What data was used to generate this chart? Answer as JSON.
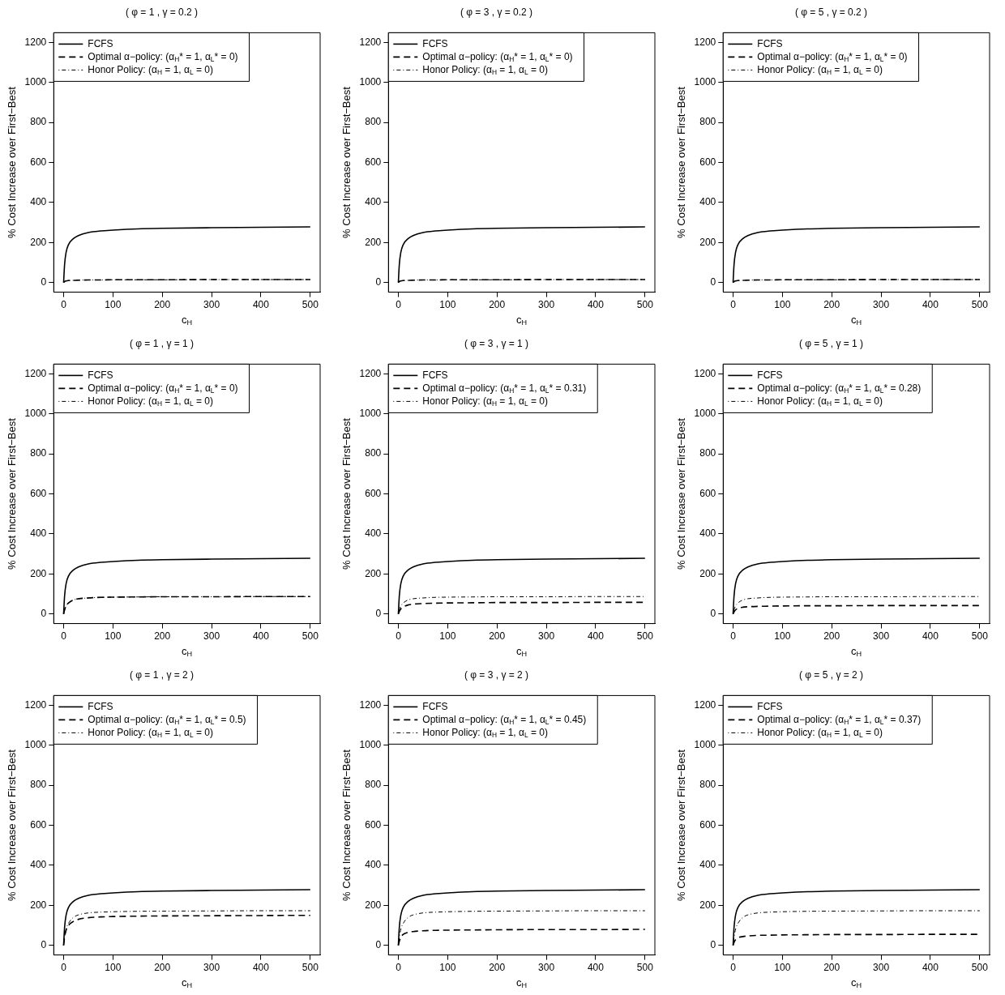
{
  "chart_data": [
    {
      "type": "line",
      "title": "( φ = 1 , γ = 0.2 )",
      "xlabel": "c$_{H}$",
      "ylabel": "% Cost Increase over First−Best",
      "xlim": [
        -20,
        520
      ],
      "ylim": [
        -48,
        1248
      ],
      "xticks": [
        0,
        100,
        200,
        300,
        400,
        500
      ],
      "yticks": [
        0,
        200,
        400,
        600,
        800,
        1000,
        1200
      ],
      "legend": "top left",
      "x": [
        0,
        2,
        5,
        10,
        20,
        30,
        50,
        75,
        100,
        150,
        200,
        300,
        400,
        500
      ],
      "series": [
        {
          "name": "FCFS",
          "color": "#000000",
          "line_style": "solid",
          "values": [
            0,
            90,
            150,
            190,
            220,
            235,
            250,
            258,
            262,
            268,
            271,
            274,
            276,
            278
          ]
        },
        {
          "name": "Optimal α−policy: (α$_{H}$* = 1, α$_{L}$* = 0)",
          "color": "#000000",
          "line_style": "dashed",
          "values": [
            0,
            5,
            8,
            10,
            11,
            12,
            13,
            13,
            14,
            14,
            14,
            15,
            15,
            15
          ]
        },
        {
          "name": "Honor Policy: (α$_{H}$ = 1, α$_{L}$ = 0)",
          "color": "#000000",
          "line_style": "dotted",
          "values": [
            0,
            5,
            8,
            10,
            11,
            12,
            13,
            13,
            14,
            14,
            14,
            15,
            15,
            15
          ]
        }
      ]
    },
    {
      "type": "line",
      "title": "( φ = 3 , γ = 0.2 )",
      "xlabel": "c$_{H}$",
      "ylabel": "% Cost Increase over First−Best",
      "xlim": [
        -20,
        520
      ],
      "ylim": [
        -48,
        1248
      ],
      "xticks": [
        0,
        100,
        200,
        300,
        400,
        500
      ],
      "yticks": [
        0,
        200,
        400,
        600,
        800,
        1000,
        1200
      ],
      "legend": "top left",
      "x": [
        0,
        2,
        5,
        10,
        20,
        30,
        50,
        75,
        100,
        150,
        200,
        300,
        400,
        500
      ],
      "series": [
        {
          "name": "FCFS",
          "color": "#000000",
          "line_style": "solid",
          "values": [
            0,
            90,
            150,
            190,
            220,
            235,
            250,
            258,
            262,
            268,
            271,
            274,
            276,
            278
          ]
        },
        {
          "name": "Optimal α−policy: (α$_{H}$* = 1, α$_{L}$* = 0)",
          "color": "#000000",
          "line_style": "dashed",
          "values": [
            0,
            5,
            8,
            10,
            11,
            12,
            13,
            13,
            14,
            14,
            14,
            15,
            15,
            15
          ]
        },
        {
          "name": "Honor Policy: (α$_{H}$ = 1, α$_{L}$ = 0)",
          "color": "#000000",
          "line_style": "dotted",
          "values": [
            0,
            5,
            8,
            10,
            11,
            12,
            13,
            13,
            14,
            14,
            14,
            15,
            15,
            15
          ]
        }
      ]
    },
    {
      "type": "line",
      "title": "( φ = 5 , γ = 0.2 )",
      "xlabel": "c$_{H}$",
      "ylabel": "% Cost Increase over First−Best",
      "xlim": [
        -20,
        520
      ],
      "ylim": [
        -48,
        1248
      ],
      "xticks": [
        0,
        100,
        200,
        300,
        400,
        500
      ],
      "yticks": [
        0,
        200,
        400,
        600,
        800,
        1000,
        1200
      ],
      "legend": "top left",
      "x": [
        0,
        2,
        5,
        10,
        20,
        30,
        50,
        75,
        100,
        150,
        200,
        300,
        400,
        500
      ],
      "series": [
        {
          "name": "FCFS",
          "color": "#000000",
          "line_style": "solid",
          "values": [
            0,
            90,
            150,
            190,
            220,
            235,
            250,
            258,
            262,
            268,
            271,
            274,
            276,
            278
          ]
        },
        {
          "name": "Optimal α−policy: (α$_{H}$* = 1, α$_{L}$* = 0)",
          "color": "#000000",
          "line_style": "dashed",
          "values": [
            0,
            5,
            8,
            10,
            11,
            12,
            13,
            13,
            14,
            14,
            14,
            15,
            15,
            15
          ]
        },
        {
          "name": "Honor Policy: (α$_{H}$ = 1, α$_{L}$ = 0)",
          "color": "#000000",
          "line_style": "dotted",
          "values": [
            0,
            5,
            8,
            10,
            11,
            12,
            13,
            13,
            14,
            14,
            14,
            15,
            15,
            15
          ]
        }
      ]
    },
    {
      "type": "line",
      "title": "( φ = 1 , γ = 1 )",
      "xlabel": "c$_{H}$",
      "ylabel": "% Cost Increase over First−Best",
      "xlim": [
        -20,
        520
      ],
      "ylim": [
        -48,
        1248
      ],
      "xticks": [
        0,
        100,
        200,
        300,
        400,
        500
      ],
      "yticks": [
        0,
        200,
        400,
        600,
        800,
        1000,
        1200
      ],
      "legend": "top left",
      "x": [
        0,
        2,
        5,
        10,
        20,
        30,
        50,
        75,
        100,
        150,
        200,
        300,
        400,
        500
      ],
      "series": [
        {
          "name": "FCFS",
          "color": "#000000",
          "line_style": "solid",
          "values": [
            0,
            90,
            150,
            190,
            220,
            235,
            250,
            258,
            262,
            268,
            271,
            274,
            276,
            278
          ]
        },
        {
          "name": "Optimal α−policy: (α$_{H}$* = 1, α$_{L}$* = 0)",
          "color": "#000000",
          "line_style": "dashed",
          "values": [
            0,
            20,
            40,
            55,
            70,
            76,
            80,
            83,
            84,
            85,
            86,
            86,
            87,
            87
          ]
        },
        {
          "name": "Honor Policy: (α$_{H}$ = 1, α$_{L}$ = 0)",
          "color": "#000000",
          "line_style": "dotted",
          "values": [
            0,
            20,
            40,
            55,
            70,
            76,
            80,
            83,
            84,
            85,
            86,
            86,
            87,
            87
          ]
        }
      ]
    },
    {
      "type": "line",
      "title": "( φ = 3 , γ = 1 )",
      "xlabel": "c$_{H}$",
      "ylabel": "% Cost Increase over First−Best",
      "xlim": [
        -20,
        520
      ],
      "ylim": [
        -48,
        1248
      ],
      "xticks": [
        0,
        100,
        200,
        300,
        400,
        500
      ],
      "yticks": [
        0,
        200,
        400,
        600,
        800,
        1000,
        1200
      ],
      "legend": "top left",
      "x": [
        0,
        2,
        5,
        10,
        20,
        30,
        50,
        75,
        100,
        150,
        200,
        300,
        400,
        500
      ],
      "series": [
        {
          "name": "FCFS",
          "color": "#000000",
          "line_style": "solid",
          "values": [
            0,
            90,
            150,
            190,
            220,
            235,
            250,
            258,
            262,
            268,
            271,
            274,
            276,
            278
          ]
        },
        {
          "name": "Optimal α−policy: (α$_{H}$* = 1, α$_{L}$* = 0.31)",
          "color": "#000000",
          "line_style": "dashed",
          "values": [
            0,
            12,
            25,
            35,
            45,
            49,
            52,
            54,
            55,
            56,
            57,
            57,
            58,
            58
          ]
        },
        {
          "name": "Honor Policy: (α$_{H}$ = 1, α$_{L}$ = 0)",
          "color": "#000000",
          "line_style": "dotted",
          "values": [
            0,
            20,
            40,
            55,
            70,
            76,
            80,
            83,
            84,
            85,
            86,
            86,
            87,
            87
          ]
        }
      ]
    },
    {
      "type": "line",
      "title": "( φ = 5 , γ = 1 )",
      "xlabel": "c$_{H}$",
      "ylabel": "% Cost Increase over First−Best",
      "xlim": [
        -20,
        520
      ],
      "ylim": [
        -48,
        1248
      ],
      "xticks": [
        0,
        100,
        200,
        300,
        400,
        500
      ],
      "yticks": [
        0,
        200,
        400,
        600,
        800,
        1000,
        1200
      ],
      "legend": "top left",
      "x": [
        0,
        2,
        5,
        10,
        20,
        30,
        50,
        75,
        100,
        150,
        200,
        300,
        400,
        500
      ],
      "series": [
        {
          "name": "FCFS",
          "color": "#000000",
          "line_style": "solid",
          "values": [
            0,
            90,
            150,
            190,
            220,
            235,
            250,
            258,
            262,
            268,
            271,
            274,
            276,
            278
          ]
        },
        {
          "name": "Optimal α−policy: (α$_{H}$* = 1, α$_{L}$* = 0.28)",
          "color": "#000000",
          "line_style": "dashed",
          "values": [
            0,
            10,
            20,
            28,
            34,
            36,
            38,
            39,
            40,
            41,
            41,
            42,
            42,
            42
          ]
        },
        {
          "name": "Honor Policy: (α$_{H}$ = 1, α$_{L}$ = 0)",
          "color": "#000000",
          "line_style": "dotted",
          "values": [
            0,
            20,
            40,
            55,
            70,
            76,
            80,
            83,
            84,
            85,
            86,
            86,
            87,
            87
          ]
        }
      ]
    },
    {
      "type": "line",
      "title": "( φ = 1 , γ = 2 )",
      "xlabel": "c$_{H}$",
      "ylabel": "% Cost Increase over First−Best",
      "xlim": [
        -20,
        520
      ],
      "ylim": [
        -48,
        1248
      ],
      "xticks": [
        0,
        100,
        200,
        300,
        400,
        500
      ],
      "yticks": [
        0,
        200,
        400,
        600,
        800,
        1000,
        1200
      ],
      "legend": "top left",
      "x": [
        0,
        2,
        5,
        10,
        20,
        30,
        50,
        75,
        100,
        150,
        200,
        300,
        400,
        500
      ],
      "series": [
        {
          "name": "FCFS",
          "color": "#000000",
          "line_style": "solid",
          "values": [
            0,
            90,
            150,
            190,
            220,
            235,
            250,
            258,
            262,
            268,
            271,
            274,
            276,
            278
          ]
        },
        {
          "name": "Optimal α−policy: (α$_{H}$* = 1, α$_{L}$* = 0.5)",
          "color": "#000000",
          "line_style": "dashed",
          "values": [
            0,
            40,
            75,
            100,
            120,
            130,
            138,
            142,
            144,
            146,
            147,
            148,
            149,
            150
          ]
        },
        {
          "name": "Honor Policy: (α$_{H}$ = 1, α$_{L}$ = 0)",
          "color": "#000000",
          "line_style": "dotted",
          "values": [
            0,
            40,
            80,
            110,
            140,
            152,
            162,
            166,
            168,
            170,
            171,
            172,
            173,
            173
          ]
        }
      ]
    },
    {
      "type": "line",
      "title": "( φ = 3 , γ = 2 )",
      "xlabel": "c$_{H}$",
      "ylabel": "% Cost Increase over First−Best",
      "xlim": [
        -20,
        520
      ],
      "ylim": [
        -48,
        1248
      ],
      "xticks": [
        0,
        100,
        200,
        300,
        400,
        500
      ],
      "yticks": [
        0,
        200,
        400,
        600,
        800,
        1000,
        1200
      ],
      "legend": "top left",
      "x": [
        0,
        2,
        5,
        10,
        20,
        30,
        50,
        75,
        100,
        150,
        200,
        300,
        400,
        500
      ],
      "series": [
        {
          "name": "FCFS",
          "color": "#000000",
          "line_style": "solid",
          "values": [
            0,
            90,
            150,
            190,
            220,
            235,
            250,
            258,
            262,
            268,
            271,
            274,
            276,
            278
          ]
        },
        {
          "name": "Optimal α−policy: (α$_{H}$* = 1, α$_{L}$* = 0.45)",
          "color": "#000000",
          "line_style": "dashed",
          "values": [
            0,
            20,
            40,
            55,
            65,
            69,
            73,
            75,
            76,
            77,
            78,
            79,
            79,
            80
          ]
        },
        {
          "name": "Honor Policy: (α$_{H}$ = 1, α$_{L}$ = 0)",
          "color": "#000000",
          "line_style": "dotted",
          "values": [
            0,
            40,
            80,
            110,
            140,
            152,
            162,
            166,
            168,
            170,
            171,
            172,
            173,
            173
          ]
        }
      ]
    },
    {
      "type": "line",
      "title": "( φ = 5 , γ = 2 )",
      "xlabel": "c$_{H}$",
      "ylabel": "% Cost Increase over First−Best",
      "xlim": [
        -20,
        520
      ],
      "ylim": [
        -48,
        1248
      ],
      "xticks": [
        0,
        100,
        200,
        300,
        400,
        500
      ],
      "yticks": [
        0,
        200,
        400,
        600,
        800,
        1000,
        1200
      ],
      "legend": "top left",
      "x": [
        0,
        2,
        5,
        10,
        20,
        30,
        50,
        75,
        100,
        150,
        200,
        300,
        400,
        500
      ],
      "series": [
        {
          "name": "FCFS",
          "color": "#000000",
          "line_style": "solid",
          "values": [
            0,
            90,
            150,
            190,
            220,
            235,
            250,
            258,
            262,
            268,
            271,
            274,
            276,
            278
          ]
        },
        {
          "name": "Optimal α−policy: (α$_{H}$* = 1, α$_{L}$* = 0.37)",
          "color": "#000000",
          "line_style": "dashed",
          "values": [
            0,
            14,
            28,
            38,
            44,
            47,
            50,
            51,
            52,
            53,
            54,
            54,
            55,
            55
          ]
        },
        {
          "name": "Honor Policy: (α$_{H}$ = 1, α$_{L}$ = 0)",
          "color": "#000000",
          "line_style": "dotted",
          "values": [
            0,
            40,
            80,
            110,
            140,
            152,
            162,
            166,
            168,
            170,
            171,
            172,
            173,
            173
          ]
        }
      ]
    }
  ]
}
